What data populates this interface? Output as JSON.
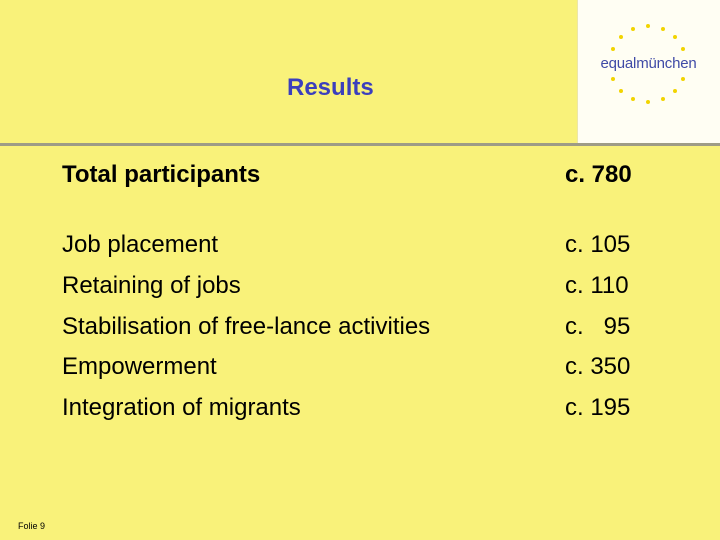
{
  "logo": {
    "part1": "equal",
    "part2": "münchen",
    "star_color": "#f2d400",
    "text_color": "#3f4aa6"
  },
  "title": "Results",
  "total": {
    "label": "Total participants",
    "value": "c. 780"
  },
  "items": [
    {
      "label": "Job placement",
      "value": "c. 105"
    },
    {
      "label": "Retaining of jobs",
      "value": "c. 110"
    },
    {
      "label": "Stabilisation of free-lance activities",
      "value": "c.   95"
    },
    {
      "label": "Empowerment",
      "value": "c. 350"
    },
    {
      "label": "Integration of migrants",
      "value": "c. 195"
    }
  ],
  "footer": "Folie 9",
  "colors": {
    "background": "#f9f27a",
    "title": "#3b3fbd"
  }
}
